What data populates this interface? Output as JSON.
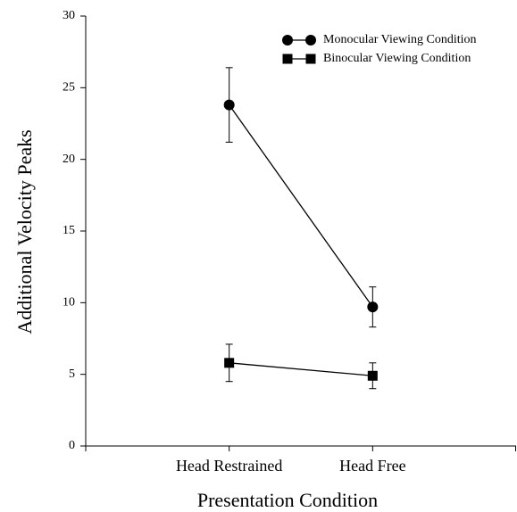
{
  "chart_data": {
    "type": "line",
    "x_label": "Presentation Condition",
    "y_label": "Additional Velocity Peaks",
    "categories": [
      "Head Restrained",
      "Head Free"
    ],
    "series": [
      {
        "name": "Monocular Viewing Condition",
        "color": "#000000",
        "marker": "circle",
        "values": [
          23.8,
          9.7
        ],
        "errors": [
          2.6,
          1.4
        ]
      },
      {
        "name": "Binocular Viewing Condition",
        "color": "#000000",
        "marker": "square",
        "values": [
          5.8,
          4.9
        ],
        "errors": [
          1.3,
          0.9
        ]
      }
    ],
    "ylim": [
      0,
      30
    ],
    "yticks": [
      0,
      5,
      10,
      15,
      20,
      25,
      30
    ],
    "legend": "upper right"
  }
}
